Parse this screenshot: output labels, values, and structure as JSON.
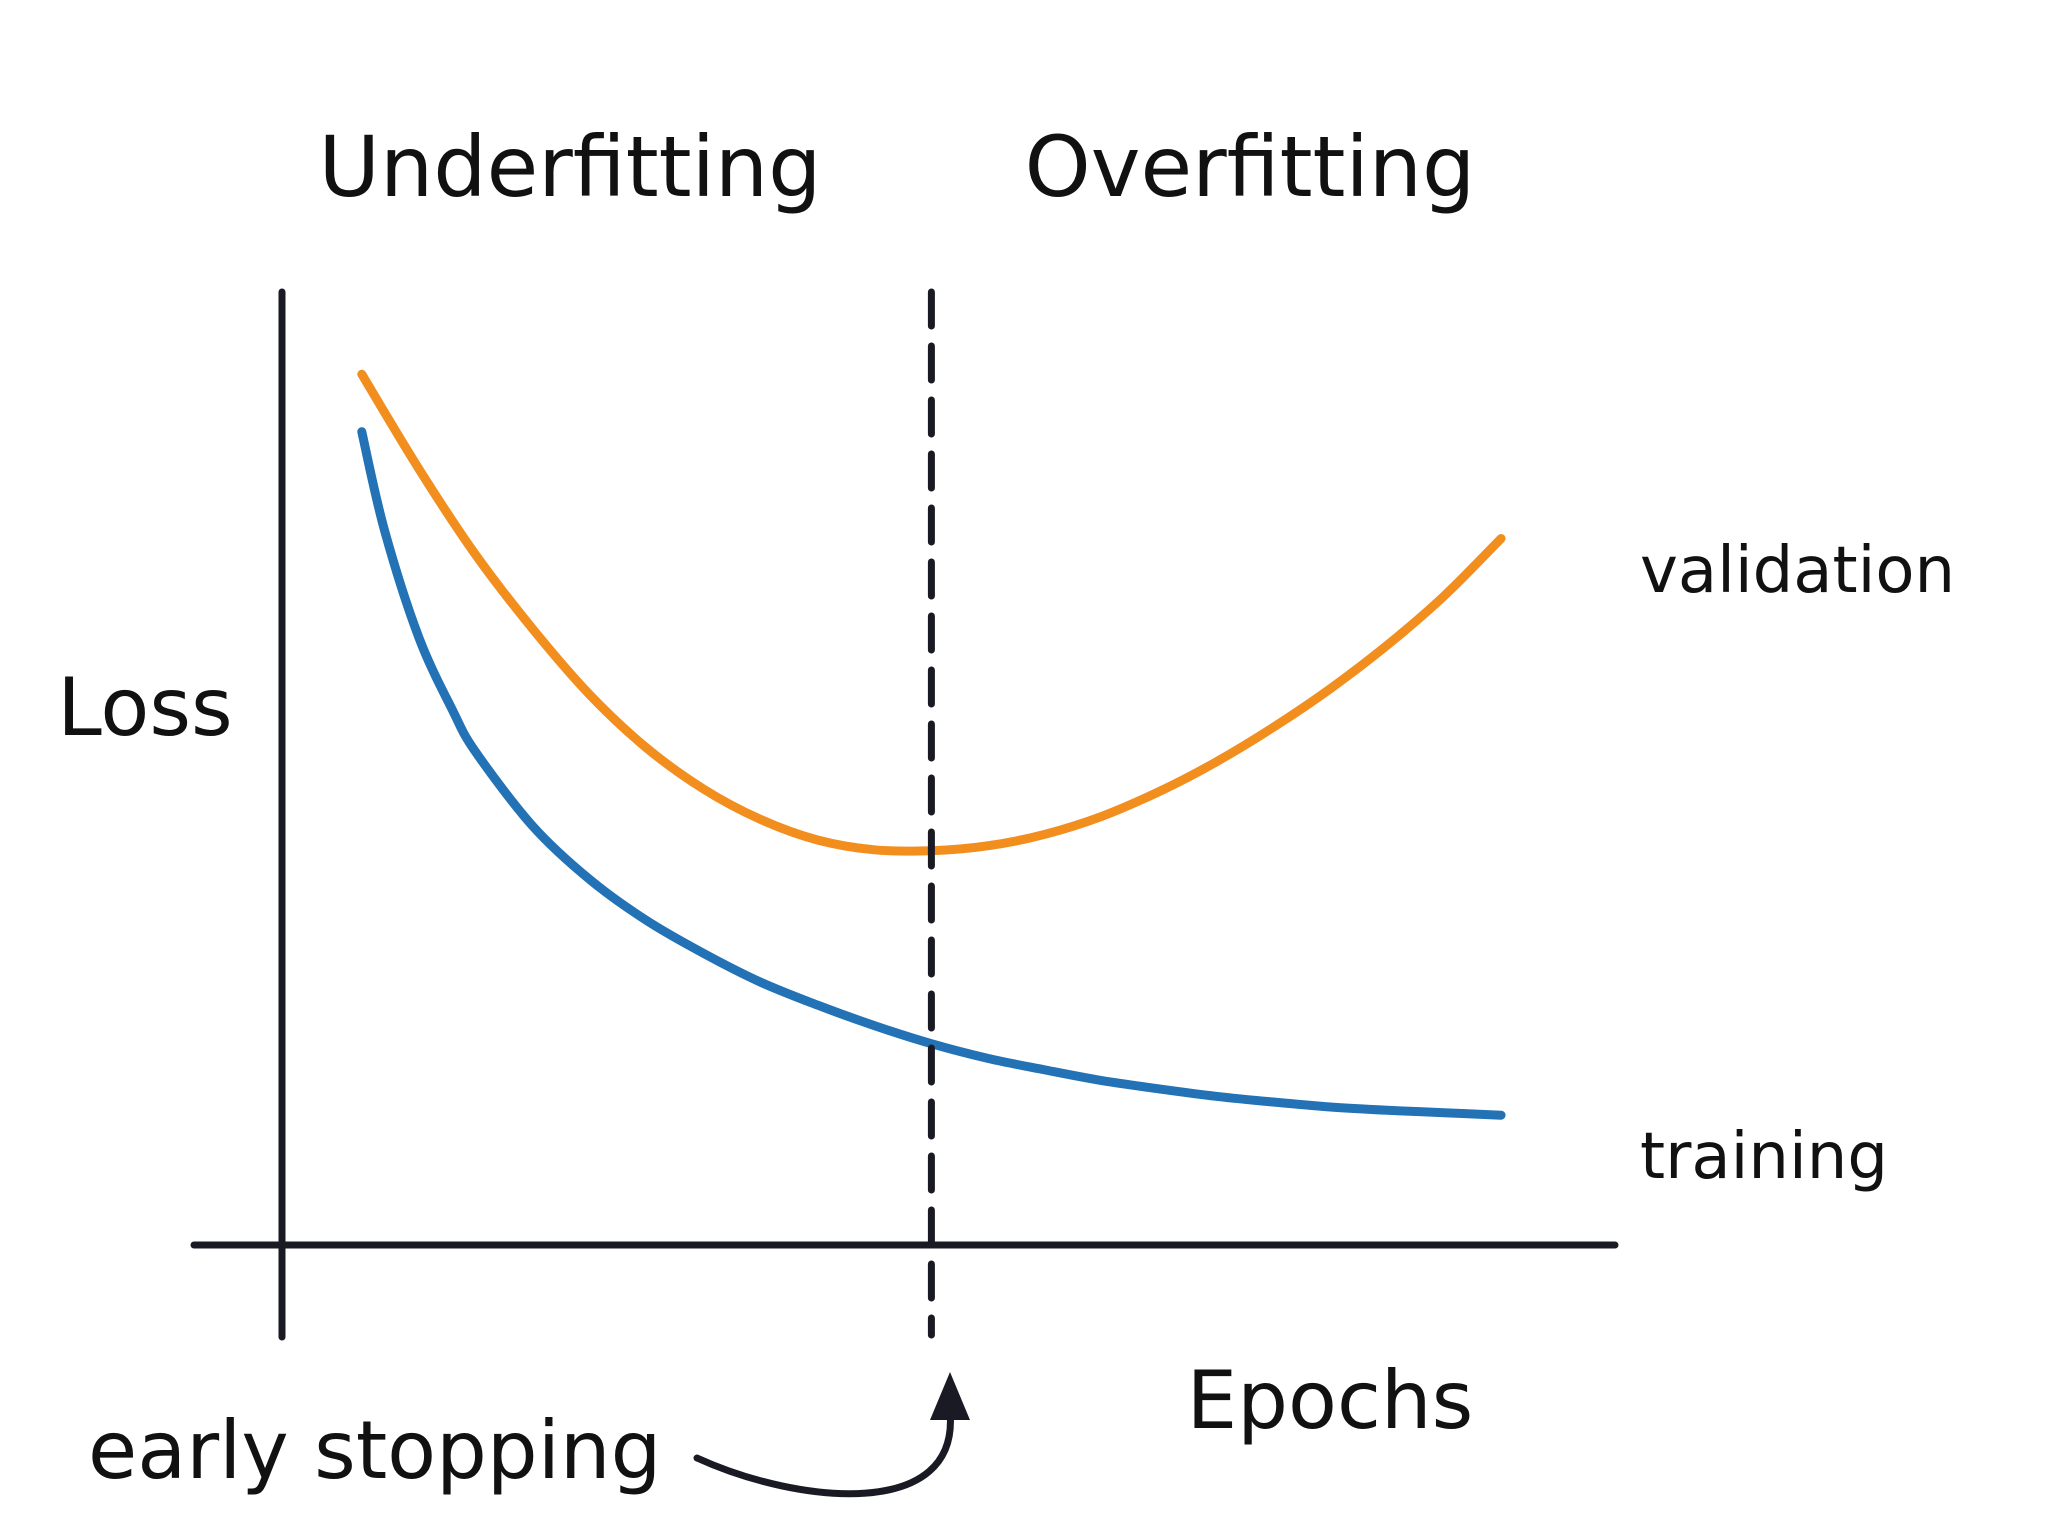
{
  "chart_data": {
    "type": "line",
    "xlabel": "Epochs",
    "ylabel": "Loss",
    "regions": [
      "Underfitting",
      "Overfitting"
    ],
    "annotation": "early stopping",
    "grid": false,
    "series": [
      {
        "name": "validation",
        "color": "#F28E1E",
        "x": [
          0,
          5,
          10,
          15,
          20,
          25,
          30,
          35,
          40,
          45,
          50,
          55,
          60,
          65,
          70,
          75,
          80,
          85,
          90,
          95,
          100
        ],
        "y": [
          9.8,
          8.65,
          7.6,
          6.7,
          5.9,
          5.25,
          4.75,
          4.38,
          4.13,
          4.01,
          4.0,
          4.06,
          4.2,
          4.42,
          4.72,
          5.08,
          5.5,
          5.97,
          6.5,
          7.1,
          7.8
        ]
      },
      {
        "name": "training",
        "color": "#2272B5",
        "x": [
          0,
          2,
          5,
          8,
          10,
          15,
          20,
          25,
          30,
          35,
          40,
          45,
          50,
          55,
          60,
          65,
          70,
          75,
          80,
          85,
          90,
          95,
          100
        ],
        "y": [
          9.1,
          7.9,
          6.6,
          5.7,
          5.2,
          4.3,
          3.65,
          3.15,
          2.75,
          2.4,
          2.12,
          1.87,
          1.65,
          1.47,
          1.33,
          1.2,
          1.1,
          1.01,
          0.94,
          0.88,
          0.84,
          0.81,
          0.78
        ]
      }
    ],
    "early_stopping_x": 50,
    "xlim": [
      -7,
      110
    ],
    "ylim": [
      -0.8,
      10.8
    ]
  }
}
